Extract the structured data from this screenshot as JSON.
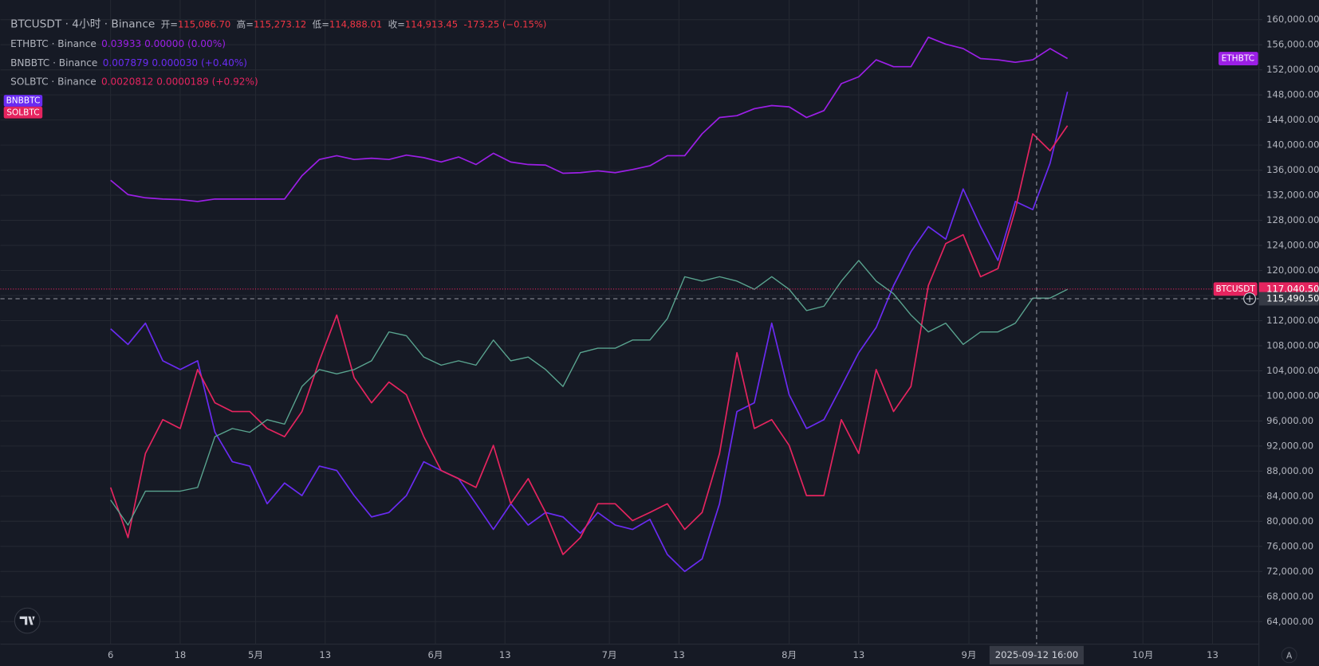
{
  "chart_data": {
    "type": "line",
    "legend": {
      "symbol": "BTCUSDT · 4小时 · Binance",
      "ohlc": [
        {
          "label": "开=",
          "value": "115,086.70"
        },
        {
          "label": "高=",
          "value": "115,273.12"
        },
        {
          "label": "低=",
          "value": "114,888.01"
        },
        {
          "label": "收=",
          "value": "114,913.45"
        }
      ],
      "change": "-173.25 (−0.15%)",
      "compare": [
        {
          "symbol": "ETHBTC · Binance",
          "values": "0.03933  0.00000 (0.00%)"
        },
        {
          "symbol": "BNBBTC · Binance",
          "values": "0.007879  0.000030 (+0.40%)"
        },
        {
          "symbol": "SOLBTC · Binance",
          "values": "0.0020812  0.0000189 (+0.92%)"
        }
      ]
    },
    "x": [
      96,
      99,
      102,
      105,
      108,
      111,
      114,
      117,
      120,
      123,
      126,
      129,
      132,
      135,
      138,
      141,
      144,
      147,
      150,
      153,
      156,
      159,
      162,
      165,
      168,
      171,
      174,
      177,
      180,
      183,
      186,
      189,
      192,
      195,
      198,
      201,
      204,
      207,
      210,
      213,
      216,
      219,
      222,
      225,
      228,
      231,
      234,
      237,
      240,
      243,
      246,
      249,
      252,
      255,
      258,
      261
    ],
    "series": [
      {
        "name": "ETHBTC",
        "color": "#9c1fe6",
        "values": [
          134400,
          132100,
          131600,
          131400,
          131300,
          131000,
          131400,
          131400,
          131400,
          131400,
          131400,
          135100,
          137700,
          138300,
          137700,
          137900,
          137700,
          138400,
          138000,
          137300,
          138100,
          136900,
          138700,
          137300,
          136900,
          136800,
          135500,
          135600,
          135900,
          135600,
          136100,
          136700,
          138300,
          138300,
          141800,
          144400,
          144700,
          145800,
          146300,
          146100,
          144400,
          145500,
          149800,
          150900,
          153600,
          152500,
          152500,
          157200,
          156100,
          155400,
          153800,
          153600,
          153200,
          153600,
          155400,
          153800
        ]
      },
      {
        "name": "BNBBTC",
        "color": "#6a2bf2",
        "values": [
          110700,
          108200,
          111600,
          105600,
          104200,
          105600,
          94200,
          89500,
          88800,
          82800,
          86100,
          84100,
          88800,
          88100,
          84100,
          80700,
          81400,
          84100,
          89500,
          88100,
          86800,
          82800,
          78700,
          82800,
          79400,
          81400,
          80700,
          78100,
          81400,
          79400,
          78700,
          80300,
          74700,
          72000,
          74000,
          82800,
          97500,
          98900,
          111600,
          100200,
          94800,
          96200,
          101500,
          106900,
          110900,
          117600,
          123000,
          127000,
          125000,
          133000,
          127000,
          121600,
          131000,
          129700,
          137100,
          148500
        ]
      },
      {
        "name": "SOLBTC",
        "color": "#e5245f",
        "values": [
          85400,
          77400,
          90800,
          96200,
          94800,
          104200,
          98900,
          97500,
          97500,
          94800,
          93500,
          97500,
          105600,
          112900,
          102900,
          98900,
          102200,
          100200,
          93500,
          88100,
          86800,
          85400,
          92100,
          82800,
          86800,
          81400,
          74700,
          77400,
          82800,
          82800,
          80100,
          81400,
          82800,
          78700,
          81400,
          90800,
          106900,
          94800,
          96200,
          92100,
          84100,
          84100,
          96200,
          90800,
          104200,
          97500,
          101500,
          117600,
          124300,
          125700,
          119000,
          120300,
          129700,
          141800,
          139100,
          143100
        ]
      },
      {
        "name": "BTCUSDT",
        "color": "#5aa590",
        "values": [
          83400,
          79400,
          84800,
          84800,
          84800,
          85400,
          93500,
          94800,
          94200,
          96200,
          95500,
          101500,
          104200,
          103500,
          104200,
          105600,
          110200,
          109600,
          106200,
          104900,
          105600,
          104900,
          108900,
          105600,
          106200,
          104200,
          101500,
          106900,
          107600,
          107600,
          108900,
          108900,
          112300,
          119000,
          118300,
          119000,
          118300,
          117000,
          119000,
          117000,
          113600,
          114300,
          118300,
          121600,
          118300,
          116300,
          112900,
          110200,
          111600,
          108200,
          110200,
          110200,
          111600,
          115600,
          115600,
          117000
        ]
      }
    ],
    "xlim": [
      77,
      294
    ],
    "xticks": [
      {
        "value": 96,
        "label": "6"
      },
      {
        "value": 108,
        "label": "18"
      },
      {
        "value": 121,
        "label": "5月"
      },
      {
        "value": 133,
        "label": "13"
      },
      {
        "value": 152,
        "label": "6月"
      },
      {
        "value": 164,
        "label": "13"
      },
      {
        "value": 182,
        "label": "7月"
      },
      {
        "value": 194,
        "label": "13"
      },
      {
        "value": 213,
        "label": "8月"
      },
      {
        "value": 225,
        "label": "13"
      },
      {
        "value": 244,
        "label": "9月"
      },
      {
        "value": 274,
        "label": "10月"
      },
      {
        "value": 286,
        "label": "13"
      }
    ],
    "ylim": [
      60400,
      161800
    ],
    "yticks": [
      {
        "value": 64000,
        "label": "64,000.00"
      },
      {
        "value": 68000,
        "label": "68,000.00"
      },
      {
        "value": 72000,
        "label": "72,000.00"
      },
      {
        "value": 76000,
        "label": "76,000.00"
      },
      {
        "value": 80000,
        "label": "80,000.00"
      },
      {
        "value": 84000,
        "label": "84,000.00"
      },
      {
        "value": 88000,
        "label": "88,000.00"
      },
      {
        "value": 92000,
        "label": "92,000.00"
      },
      {
        "value": 96000,
        "label": "96,000.00"
      },
      {
        "value": 100000,
        "label": "100,000.00"
      },
      {
        "value": 104000,
        "label": "104,000.00"
      },
      {
        "value": 108000,
        "label": "108,000.00"
      },
      {
        "value": 112000,
        "label": "112,000.00"
      },
      {
        "value": 116000,
        "label": "116,000.00"
      },
      {
        "value": 120000,
        "label": "120,000.00"
      },
      {
        "value": 124000,
        "label": "124,000.00"
      },
      {
        "value": 128000,
        "label": "128,000.00"
      },
      {
        "value": 132000,
        "label": "132,000.00"
      },
      {
        "value": 136000,
        "label": "136,000.00"
      },
      {
        "value": 140000,
        "label": "140,000.00"
      },
      {
        "value": 144000,
        "label": "144,000.00"
      },
      {
        "value": 148000,
        "label": "148,000.00"
      },
      {
        "value": 152000,
        "label": "152,000.00"
      },
      {
        "value": 156000,
        "label": "156,000.00"
      },
      {
        "value": 160000,
        "label": "160,000.00"
      }
    ],
    "grid": true,
    "last_price": {
      "value": 117040.5,
      "label": "117,040.50"
    },
    "crosshair": {
      "x": 255.67,
      "x_label": "2025-09-12  16:00",
      "price": 115490.5,
      "price_label": "115,490.50"
    },
    "auto_scale": "A"
  }
}
